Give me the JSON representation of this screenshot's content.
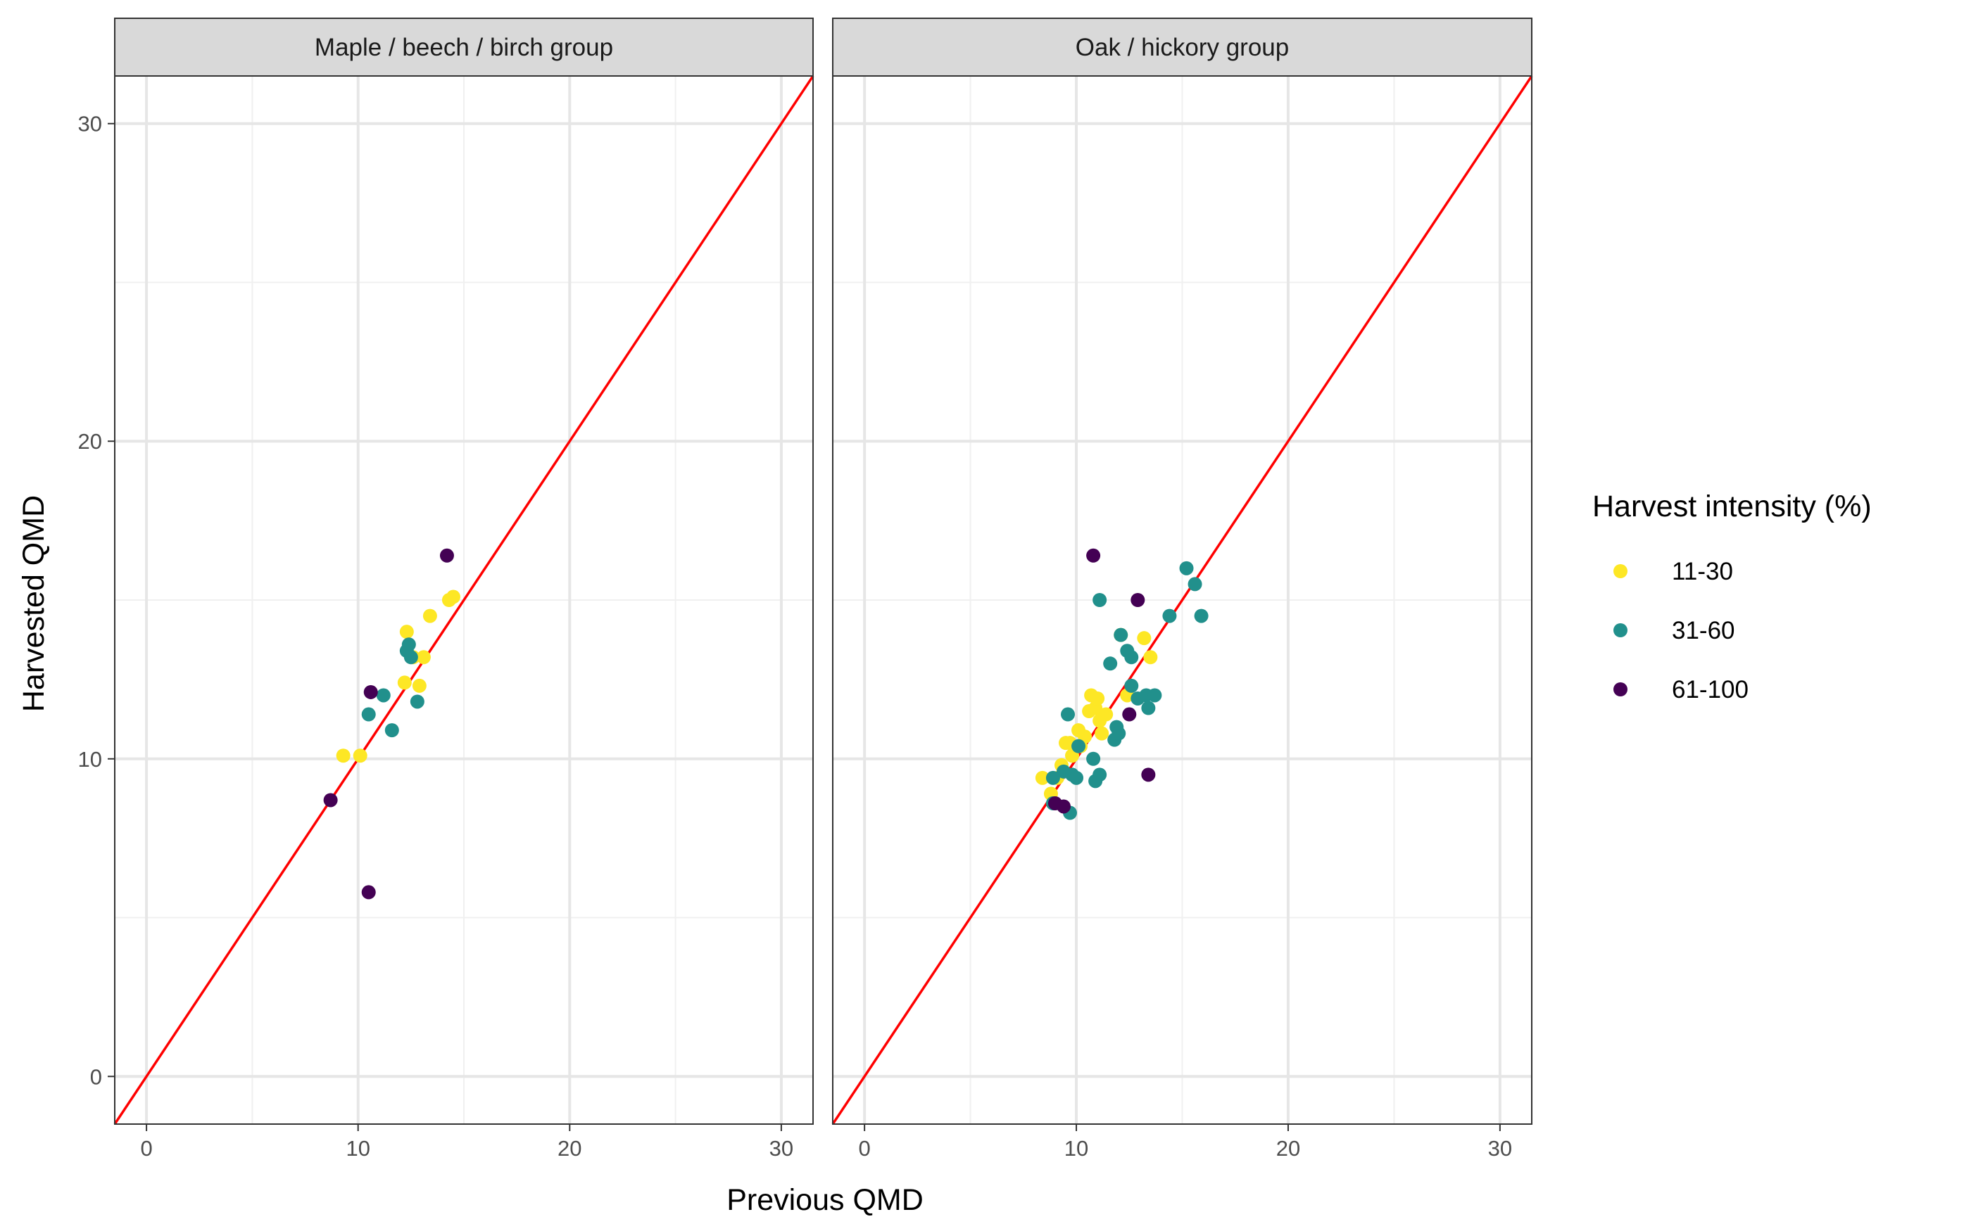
{
  "chart_data": {
    "type": "scatter",
    "xlabel": "Previous QMD",
    "ylabel": "Harvested QMD",
    "xlim": [
      -1.5,
      31.5
    ],
    "ylim": [
      -1.5,
      31.5
    ],
    "x_ticks": [
      0,
      10,
      20,
      30
    ],
    "y_ticks": [
      0,
      10,
      20,
      30
    ],
    "grid": true,
    "reference_line": {
      "type": "identity",
      "slope": 1,
      "intercept": 0,
      "color": "#FF0000"
    },
    "legend": {
      "title": "Harvest intensity (%)",
      "placement": "right",
      "entries": [
        {
          "label": "11-30",
          "color": "#FDE725"
        },
        {
          "label": "31-60",
          "color": "#21908C"
        },
        {
          "label": "61-100",
          "color": "#440154"
        }
      ]
    },
    "panels": [
      {
        "title": "Maple / beech / birch group",
        "series": [
          {
            "name": "11-30",
            "points": [
              [
                9.3,
                10.1
              ],
              [
                10.1,
                10.1
              ],
              [
                12.2,
                12.4
              ],
              [
                12.3,
                14.0
              ],
              [
                12.6,
                13.2
              ],
              [
                12.9,
                12.3
              ],
              [
                13.1,
                13.2
              ],
              [
                13.4,
                14.5
              ],
              [
                14.3,
                15.0
              ],
              [
                14.5,
                15.1
              ]
            ]
          },
          {
            "name": "31-60",
            "points": [
              [
                10.5,
                11.4
              ],
              [
                11.2,
                12.0
              ],
              [
                11.6,
                10.9
              ],
              [
                12.3,
                13.4
              ],
              [
                12.4,
                13.6
              ],
              [
                12.5,
                13.2
              ],
              [
                12.8,
                11.8
              ]
            ]
          },
          {
            "name": "61-100",
            "points": [
              [
                8.7,
                8.7
              ],
              [
                10.5,
                5.8
              ],
              [
                10.6,
                12.1
              ],
              [
                14.2,
                16.4
              ]
            ]
          }
        ]
      },
      {
        "title": "Oak / hickory group",
        "series": [
          {
            "name": "11-30",
            "points": [
              [
                8.4,
                9.4
              ],
              [
                8.8,
                8.9
              ],
              [
                9.1,
                9.4
              ],
              [
                9.3,
                9.8
              ],
              [
                9.5,
                10.5
              ],
              [
                9.7,
                10.5
              ],
              [
                9.8,
                10.1
              ],
              [
                10.1,
                10.9
              ],
              [
                10.2,
                10.4
              ],
              [
                10.4,
                10.7
              ],
              [
                10.6,
                11.5
              ],
              [
                10.7,
                12.0
              ],
              [
                10.9,
                11.6
              ],
              [
                11.0,
                11.9
              ],
              [
                11.1,
                11.2
              ],
              [
                11.2,
                10.8
              ],
              [
                11.4,
                11.4
              ],
              [
                12.1,
                13.9
              ],
              [
                12.4,
                12.0
              ],
              [
                13.2,
                13.8
              ],
              [
                13.5,
                13.2
              ]
            ]
          },
          {
            "name": "31-60",
            "points": [
              [
                8.9,
                8.6
              ],
              [
                8.9,
                9.4
              ],
              [
                9.4,
                9.6
              ],
              [
                9.6,
                11.4
              ],
              [
                9.7,
                8.3
              ],
              [
                9.8,
                9.5
              ],
              [
                10.0,
                9.4
              ],
              [
                10.1,
                10.4
              ],
              [
                10.8,
                10.0
              ],
              [
                10.9,
                9.3
              ],
              [
                11.1,
                15.0
              ],
              [
                11.1,
                9.5
              ],
              [
                11.6,
                13.0
              ],
              [
                11.8,
                10.6
              ],
              [
                11.9,
                11.0
              ],
              [
                12.0,
                10.8
              ],
              [
                12.1,
                13.9
              ],
              [
                12.4,
                13.4
              ],
              [
                12.6,
                13.2
              ],
              [
                12.6,
                12.3
              ],
              [
                12.9,
                11.9
              ],
              [
                13.3,
                12.0
              ],
              [
                13.4,
                11.6
              ],
              [
                13.7,
                12.0
              ],
              [
                14.4,
                14.5
              ],
              [
                15.2,
                16.0
              ],
              [
                15.6,
                15.5
              ],
              [
                15.9,
                14.5
              ]
            ]
          },
          {
            "name": "61-100",
            "points": [
              [
                9.0,
                8.6
              ],
              [
                9.4,
                8.5
              ],
              [
                10.8,
                16.4
              ],
              [
                12.5,
                11.4
              ],
              [
                12.9,
                15.0
              ],
              [
                13.4,
                9.5
              ]
            ]
          }
        ]
      }
    ]
  }
}
